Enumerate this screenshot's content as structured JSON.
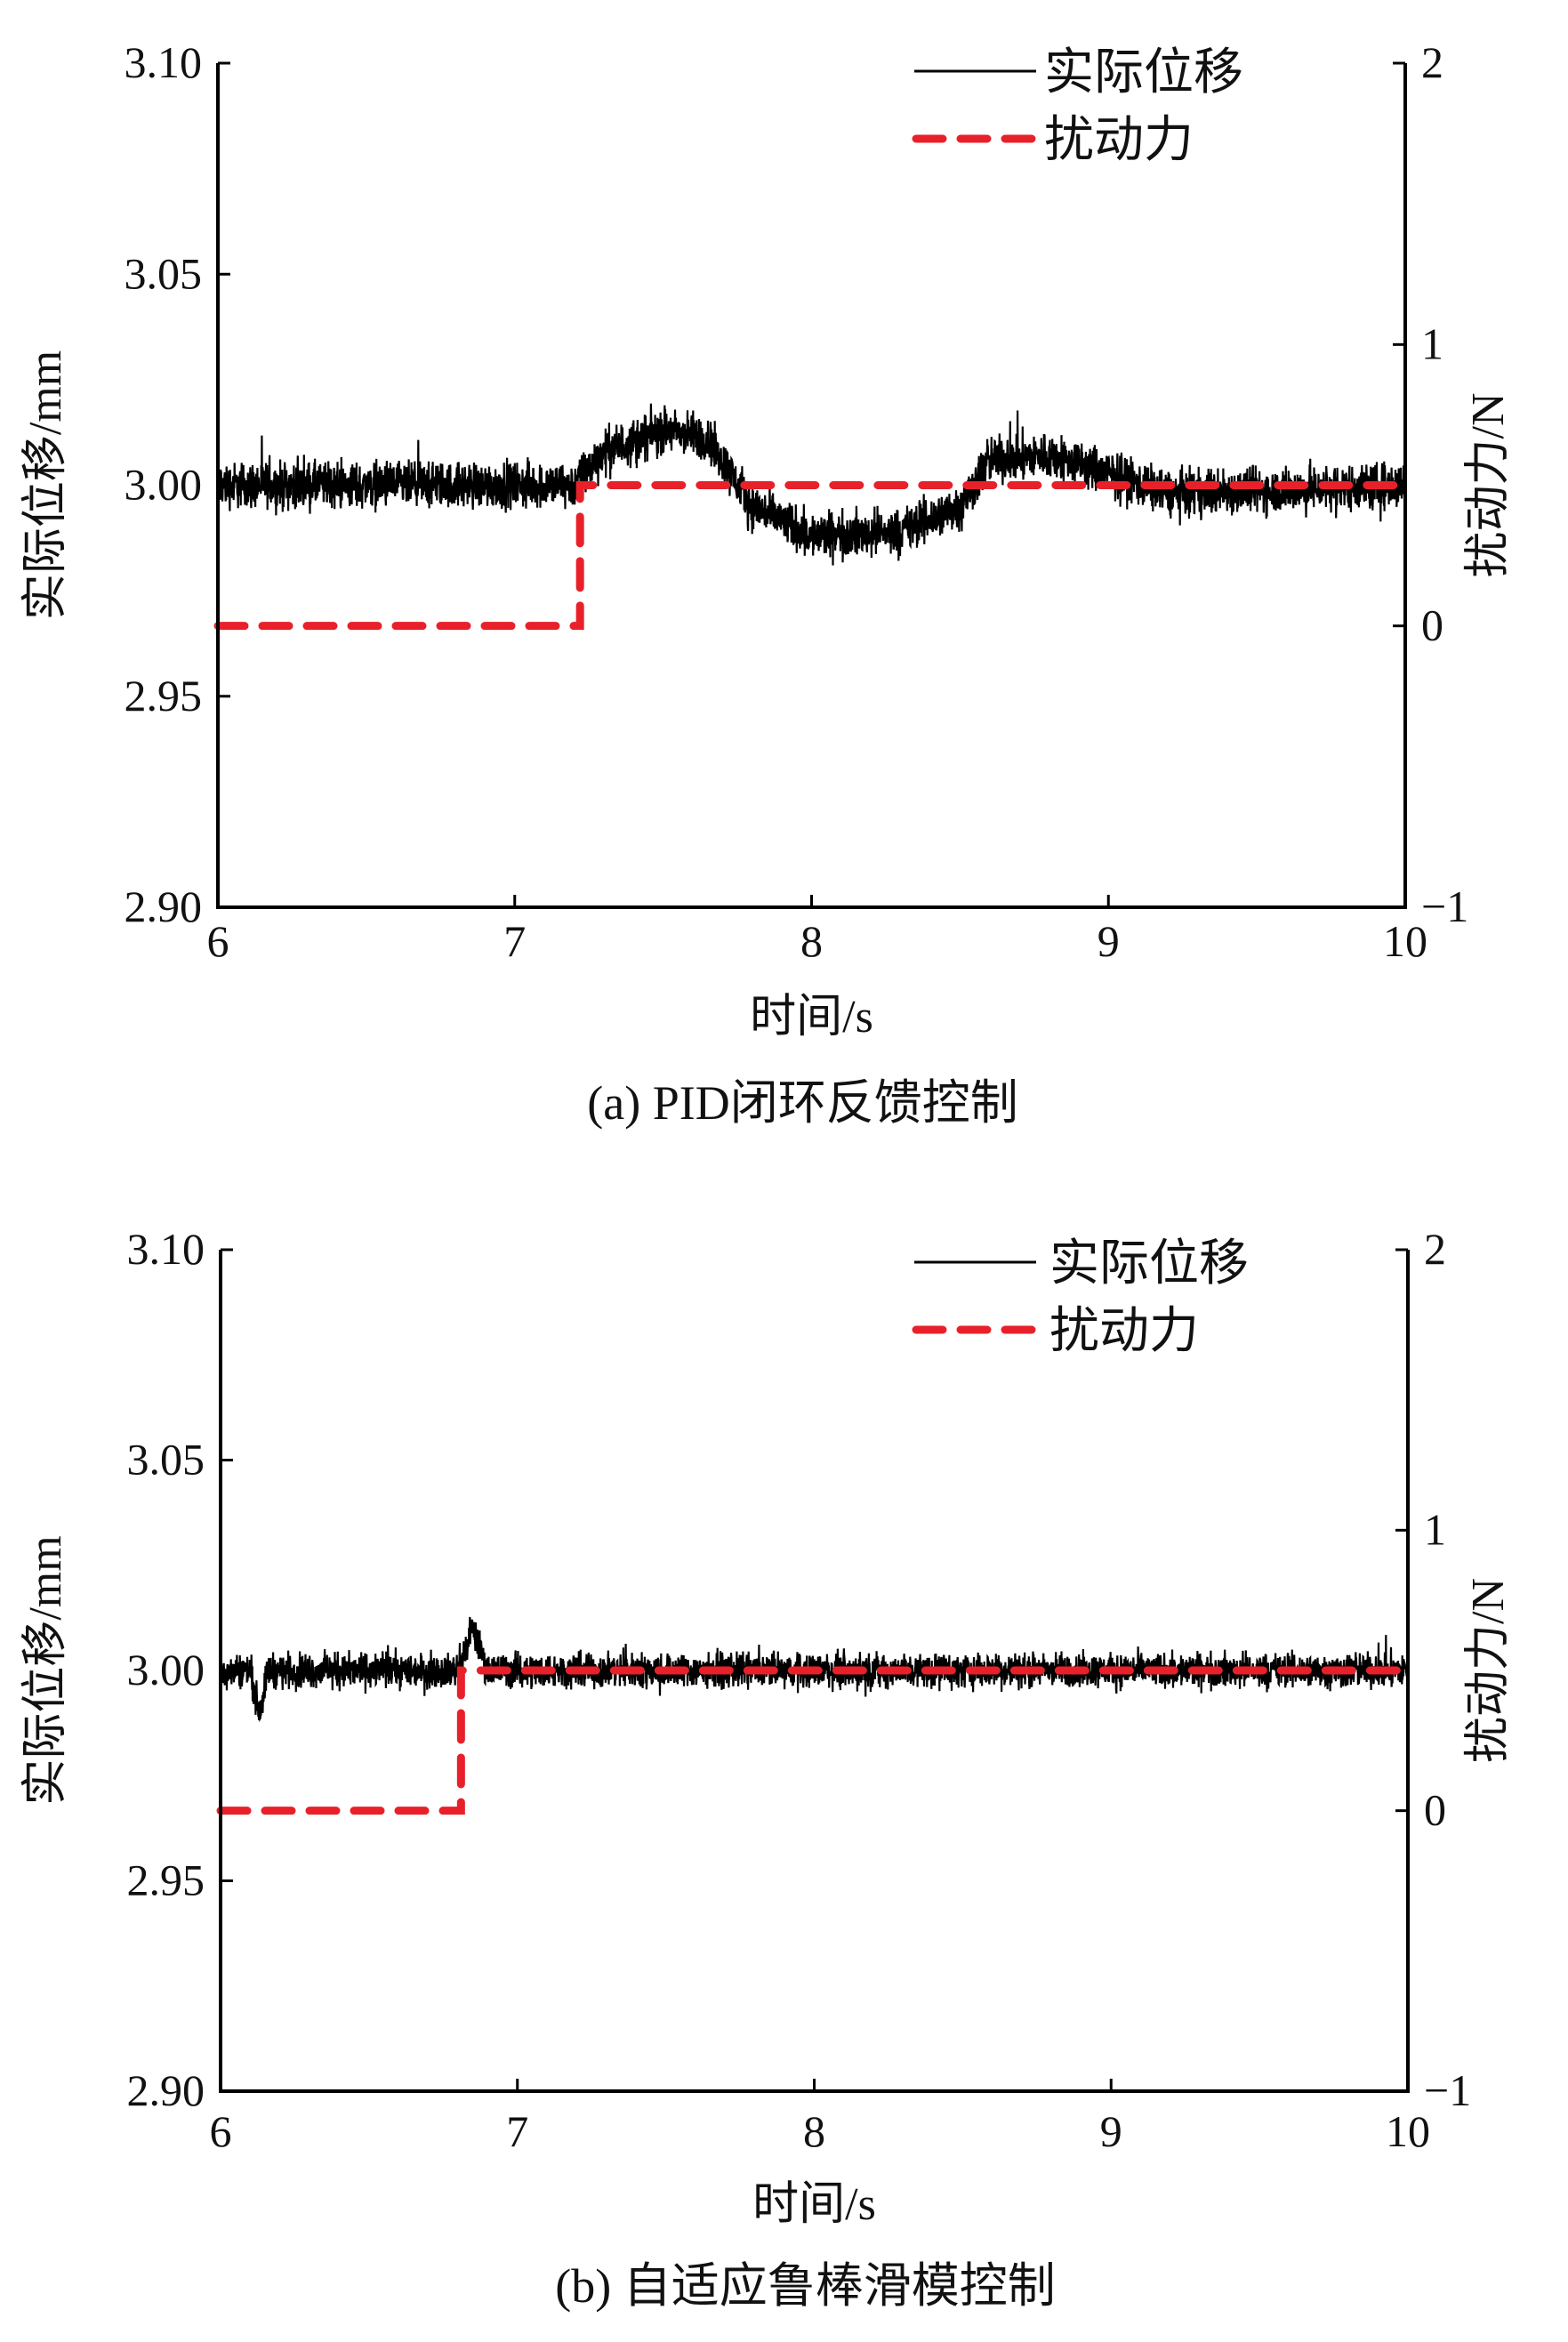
{
  "chart_data": [
    {
      "type": "line",
      "caption": "(a) PID闭环反馈控制",
      "xlabel": "时间/s",
      "ylabel": "实际位移/mm",
      "y2label": "扰动力/N",
      "xlim": [
        6,
        10
      ],
      "ylim": [
        2.9,
        3.1
      ],
      "y2lim": [
        -1,
        2
      ],
      "xticks": [
        "6",
        "7",
        "8",
        "9",
        "10"
      ],
      "yticks": [
        "2.90",
        "2.95",
        "3.00",
        "3.05",
        "3.10"
      ],
      "y2ticks": [
        "−1",
        "0",
        "1",
        "2"
      ],
      "legend": {
        "placement": "top-right",
        "entries": [
          "实际位移",
          "扰动力"
        ]
      },
      "series": [
        {
          "name": "实际位移",
          "axis": "left",
          "color": "#000000",
          "style": "solid",
          "noise_amplitude": 0.008,
          "x": [
            6.0,
            7.2,
            7.3,
            7.5,
            7.65,
            7.8,
            8.0,
            8.3,
            8.5,
            8.6,
            8.8,
            8.95,
            9.2,
            10.0
          ],
          "y": [
            3.0,
            3.0,
            3.008,
            3.013,
            3.011,
            2.995,
            2.988,
            2.989,
            2.995,
            3.006,
            3.007,
            3.004,
            2.998,
            3.0
          ]
        },
        {
          "name": "扰动力",
          "axis": "right",
          "color": "#e8202a",
          "style": "dashed",
          "x": [
            6.0,
            7.22,
            7.22,
            10.0
          ],
          "y": [
            0,
            0,
            0.5,
            0.5
          ]
        }
      ]
    },
    {
      "type": "line",
      "caption": "(b) 自适应鲁棒滑模控制",
      "xlabel": "时间/s",
      "ylabel": "实际位移/mm",
      "y2label": "扰动力/N",
      "xlim": [
        6,
        10
      ],
      "ylim": [
        2.9,
        3.1
      ],
      "y2lim": [
        -1,
        2
      ],
      "xticks": [
        "6",
        "7",
        "8",
        "9",
        "10"
      ],
      "yticks": [
        "2.90",
        "2.95",
        "3.00",
        "3.05",
        "3.10"
      ],
      "y2ticks": [
        "−1",
        "0",
        "1",
        "2"
      ],
      "legend": {
        "placement": "top-right",
        "entries": [
          "实际位移",
          "扰动力"
        ]
      },
      "series": [
        {
          "name": "实际位移",
          "axis": "left",
          "color": "#000000",
          "style": "solid",
          "noise_amplitude": 0.006,
          "x": [
            6.0,
            6.1,
            6.13,
            6.16,
            6.8,
            6.85,
            6.9,
            10.0
          ],
          "y": [
            3.0,
            3.0,
            2.99,
            3.0,
            3.0,
            3.01,
            3.0,
            3.0
          ]
        },
        {
          "name": "扰动力",
          "axis": "right",
          "color": "#e8202a",
          "style": "dashed",
          "x": [
            6.0,
            6.81,
            6.81,
            10.0
          ],
          "y": [
            0,
            0,
            0.5,
            0.5
          ]
        }
      ]
    }
  ]
}
